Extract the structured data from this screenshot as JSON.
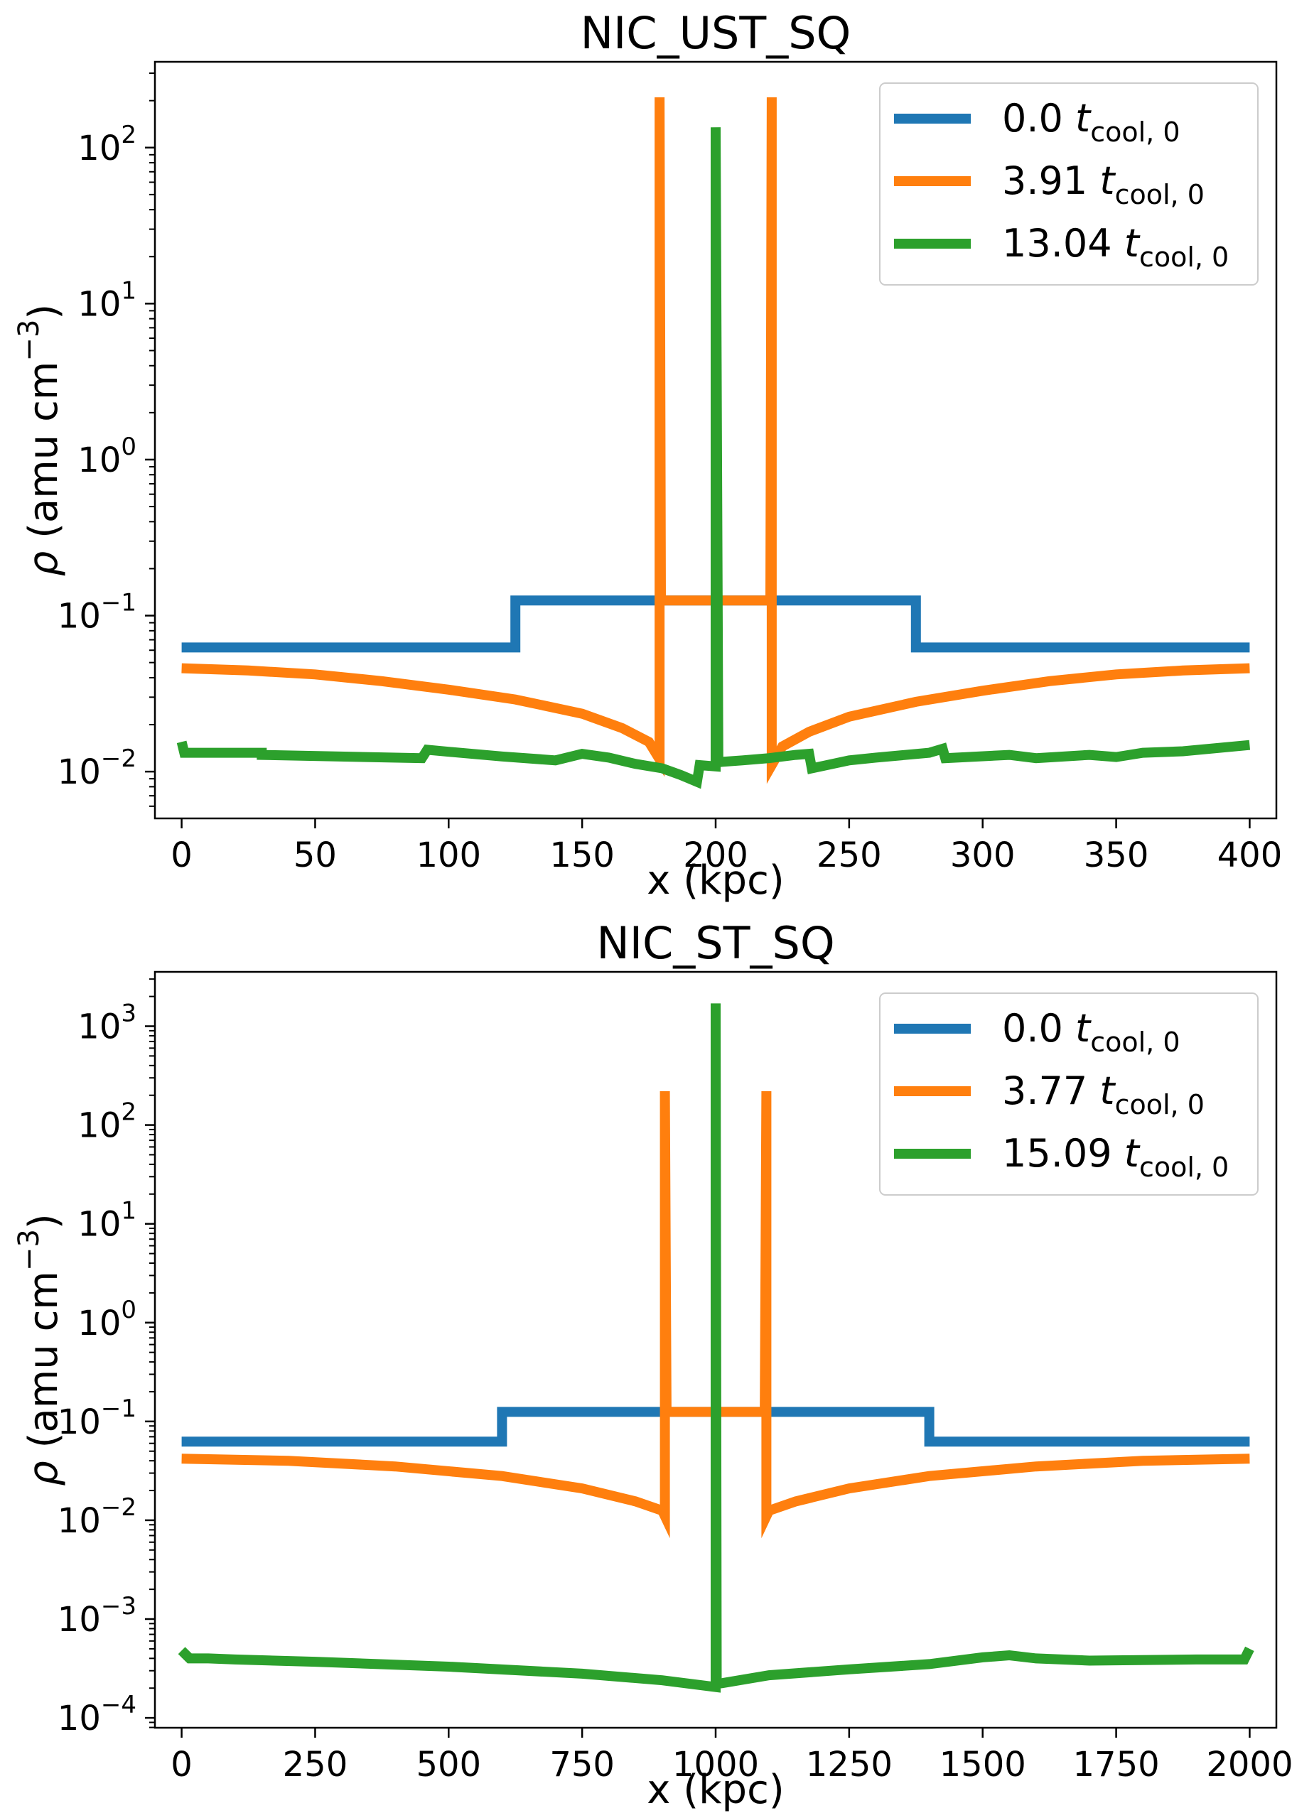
{
  "chart_data": [
    {
      "type": "line",
      "title": "NIC_UST_SQ",
      "xlabel": "x (kpc)",
      "ylabel_symbol": "ρ",
      "ylabel_text": "(amu cm",
      "ylabel_exp": "−3",
      "ylabel_close": ")",
      "yscale": "log",
      "xlim": [
        -10,
        410
      ],
      "ylim_log10": [
        -2.3,
        2.55
      ],
      "xticks": [
        0,
        50,
        100,
        150,
        200,
        250,
        300,
        350,
        400
      ],
      "yticks": [
        {
          "base": "10",
          "exp": "−2",
          "log": -2
        },
        {
          "base": "10",
          "exp": "−1",
          "log": -1
        },
        {
          "base": "10",
          "exp": "0",
          "log": 0
        },
        {
          "base": "10",
          "exp": "1",
          "log": 1
        },
        {
          "base": "10",
          "exp": "2",
          "log": 2
        }
      ],
      "legend_position": "top-right",
      "series": [
        {
          "name": "0.0",
          "suffix": "t",
          "sub": "cool, 0",
          "color": "#1f77b4",
          "x": [
            0,
            125,
            125,
            275,
            275,
            400
          ],
          "y": [
            0.0625,
            0.0625,
            0.125,
            0.125,
            0.0625,
            0.0625
          ]
        },
        {
          "name": "3.91",
          "suffix": "t",
          "sub": "cool, 0",
          "color": "#ff7f0e",
          "x": [
            0,
            25,
            50,
            75,
            100,
            125,
            150,
            165,
            175,
            179,
            179,
            179.5,
            180,
            220,
            220.5,
            221,
            221,
            225,
            235,
            250,
            275,
            300,
            325,
            350,
            375,
            400
          ],
          "y": [
            0.046,
            0.0445,
            0.042,
            0.038,
            0.0335,
            0.029,
            0.0235,
            0.019,
            0.0155,
            0.012,
            210,
            0.125,
            0.125,
            0.125,
            0.125,
            210,
            0.011,
            0.0145,
            0.018,
            0.0225,
            0.028,
            0.033,
            0.038,
            0.042,
            0.0445,
            0.046
          ]
        },
        {
          "name": "13.04",
          "suffix": "t",
          "sub": "cool, 0",
          "color": "#2ca02c",
          "x": [
            0,
            1,
            30,
            30,
            90,
            92,
            100,
            120,
            140,
            150,
            160,
            170,
            180,
            187,
            193,
            194,
            200,
            200,
            201,
            210,
            220,
            230,
            235,
            236,
            250,
            260,
            280,
            285,
            286,
            310,
            320,
            340,
            350,
            360,
            375,
            400
          ],
          "y": [
            0.0155,
            0.0132,
            0.0132,
            0.0128,
            0.0122,
            0.0138,
            0.0134,
            0.0125,
            0.0118,
            0.013,
            0.0123,
            0.0112,
            0.0105,
            0.0095,
            0.0086,
            0.011,
            0.0108,
            135,
            0.0115,
            0.0118,
            0.0122,
            0.0128,
            0.013,
            0.0105,
            0.0118,
            0.0123,
            0.0132,
            0.014,
            0.0122,
            0.0128,
            0.0122,
            0.0128,
            0.0124,
            0.0132,
            0.0135,
            0.0148
          ]
        }
      ]
    },
    {
      "type": "line",
      "title": "NIC_ST_SQ",
      "xlabel": "x (kpc)",
      "ylabel_symbol": "ρ",
      "ylabel_text": "(amu cm",
      "ylabel_exp": "−3",
      "ylabel_close": ")",
      "yscale": "log",
      "xlim": [
        -50,
        2050
      ],
      "ylim_log10": [
        -4.1,
        3.55
      ],
      "xticks": [
        0,
        250,
        500,
        750,
        1000,
        1250,
        1500,
        1750,
        2000
      ],
      "yticks": [
        {
          "base": "10",
          "exp": "−4",
          "log": -4
        },
        {
          "base": "10",
          "exp": "−3",
          "log": -3
        },
        {
          "base": "10",
          "exp": "−2",
          "log": -2
        },
        {
          "base": "10",
          "exp": "−1",
          "log": -1
        },
        {
          "base": "10",
          "exp": "0",
          "log": 0
        },
        {
          "base": "10",
          "exp": "1",
          "log": 1
        },
        {
          "base": "10",
          "exp": "2",
          "log": 2
        },
        {
          "base": "10",
          "exp": "3",
          "log": 3
        }
      ],
      "legend_position": "top-right",
      "series": [
        {
          "name": "0.0",
          "suffix": "t",
          "sub": "cool, 0",
          "color": "#1f77b4",
          "x": [
            0,
            600,
            600,
            1400,
            1400,
            2000
          ],
          "y": [
            0.0625,
            0.0625,
            0.125,
            0.125,
            0.0625,
            0.0625
          ]
        },
        {
          "name": "3.77",
          "suffix": "t",
          "sub": "cool, 0",
          "color": "#ff7f0e",
          "x": [
            0,
            200,
            400,
            600,
            750,
            850,
            900,
            905,
            905,
            908,
            910,
            1090,
            1092,
            1095,
            1095,
            1100,
            1150,
            1250,
            1400,
            1600,
            1800,
            2000
          ],
          "y": [
            0.042,
            0.04,
            0.035,
            0.028,
            0.021,
            0.0155,
            0.0125,
            0.011,
            220,
            0.125,
            0.125,
            0.125,
            0.125,
            220,
            0.011,
            0.0125,
            0.0155,
            0.021,
            0.028,
            0.035,
            0.04,
            0.042
          ]
        },
        {
          "name": "15.09",
          "suffix": "t",
          "sub": "cool, 0",
          "color": "#2ca02c",
          "x": [
            0,
            15,
            50,
            100,
            250,
            500,
            750,
            900,
            1000,
            1000,
            1002,
            1100,
            1250,
            1400,
            1500,
            1550,
            1600,
            1700,
            1900,
            1990,
            2000
          ],
          "y": [
            0.00048,
            0.0004,
            0.0004,
            0.00039,
            0.00037,
            0.00033,
            0.00028,
            0.00024,
            0.000205,
            1700,
            0.00022,
            0.00027,
            0.00031,
            0.00035,
            0.00041,
            0.00043,
            0.0004,
            0.00038,
            0.00039,
            0.00039,
            0.0005
          ]
        }
      ]
    }
  ]
}
